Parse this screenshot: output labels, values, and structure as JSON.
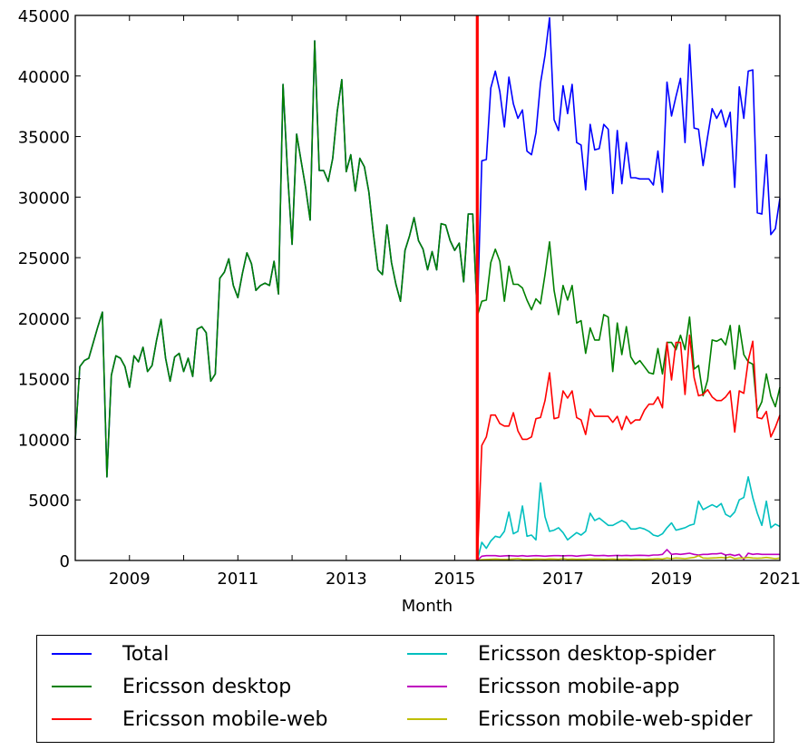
{
  "chart_data": {
    "type": "line",
    "title": "",
    "xlabel": "Month",
    "ylabel": "",
    "x_start": "2008-01",
    "x_frequency": "monthly",
    "xlim": [
      "2008-01",
      "2021-01"
    ],
    "ylim": [
      0,
      45000
    ],
    "x_ticks": [
      "2009",
      "2011",
      "2013",
      "2015",
      "2017",
      "2019",
      "2021"
    ],
    "y_ticks": [
      "0",
      "5000",
      "10000",
      "15000",
      "20000",
      "25000",
      "30000",
      "35000",
      "40000",
      "45000"
    ],
    "grid": false,
    "legend_placement": "below",
    "annotations": [
      {
        "type": "vertical-line",
        "x": "2015-06",
        "color": "#ff0000"
      }
    ],
    "series": [
      {
        "name": "Total",
        "color": "#0000ff",
        "start": "2008-01",
        "values": [
          10000,
          16000,
          16500,
          16700,
          18000,
          19300,
          20500,
          6900,
          15300,
          16900,
          16700,
          16000,
          14300,
          16900,
          16400,
          17600,
          15600,
          16100,
          18200,
          19900,
          16700,
          14800,
          16800,
          17100,
          15600,
          16700,
          15200,
          19100,
          19300,
          18800,
          14800,
          15400,
          23300,
          23800,
          24900,
          22700,
          21700,
          23700,
          25400,
          24500,
          22300,
          22700,
          22900,
          22700,
          24700,
          22000,
          39300,
          32000,
          26100,
          35200,
          33000,
          30800,
          28100,
          42900,
          32200,
          32200,
          31300,
          33200,
          37100,
          39700,
          32100,
          33500,
          30500,
          33200,
          32500,
          30400,
          27000,
          24000,
          23600,
          27700,
          24600,
          22800,
          21400,
          25600,
          26800,
          28300,
          26400,
          25700,
          24000,
          25500,
          24000,
          27800,
          27700,
          26400,
          25600,
          26200,
          23000,
          28600,
          28600,
          20200,
          33000,
          33100,
          39000,
          40400,
          38700,
          35800,
          39900,
          37700,
          36500,
          37200,
          33800,
          33500,
          35300,
          39400,
          41700,
          44800,
          36400,
          35500,
          39200,
          36900,
          39300,
          34500,
          34300,
          30600,
          36000,
          33900,
          34000,
          36000,
          35600,
          30300,
          35500,
          31100,
          34500,
          31600,
          31600,
          31500,
          31500,
          31500,
          31000,
          33800,
          30400,
          39500,
          36700,
          38300,
          39800,
          34500,
          42600,
          35700,
          35600,
          32600,
          35000,
          37300,
          36500,
          37200,
          35800,
          37000,
          30800,
          39100,
          36500,
          40400,
          40500,
          28700,
          28600,
          33500,
          26900,
          27400,
          29900
        ]
      },
      {
        "name": "Ericsson desktop",
        "color": "#008000",
        "start": "2008-01",
        "values": [
          10000,
          16000,
          16500,
          16700,
          18000,
          19300,
          20500,
          6900,
          15300,
          16900,
          16700,
          16000,
          14300,
          16900,
          16400,
          17600,
          15600,
          16100,
          18200,
          19900,
          16700,
          14800,
          16800,
          17100,
          15600,
          16700,
          15200,
          19100,
          19300,
          18800,
          14800,
          15400,
          23300,
          23800,
          24900,
          22700,
          21700,
          23700,
          25400,
          24500,
          22300,
          22700,
          22900,
          22700,
          24700,
          22000,
          39300,
          32000,
          26100,
          35200,
          33000,
          30800,
          28100,
          42900,
          32200,
          32200,
          31300,
          33200,
          37100,
          39700,
          32100,
          33500,
          30500,
          33200,
          32500,
          30400,
          27000,
          24000,
          23600,
          27700,
          24600,
          22800,
          21400,
          25600,
          26800,
          28300,
          26400,
          25700,
          24000,
          25500,
          24000,
          27800,
          27700,
          26400,
          25600,
          26200,
          23000,
          28600,
          28600,
          20200,
          21400,
          21500,
          24600,
          25700,
          24700,
          21400,
          24300,
          22800,
          22800,
          22500,
          21500,
          20700,
          21600,
          21200,
          23600,
          26300,
          22300,
          20300,
          22700,
          21500,
          22700,
          19600,
          19800,
          17100,
          19200,
          18200,
          18200,
          20300,
          20100,
          15600,
          19600,
          17000,
          19300,
          16800,
          16200,
          16500,
          16000,
          15500,
          15400,
          17500,
          15400,
          18000,
          18000,
          17400,
          18600,
          17400,
          20100,
          15800,
          16100,
          13600,
          14900,
          18200,
          18100,
          18300,
          17800,
          19400,
          15800,
          19400,
          17000,
          16400,
          16200,
          12300,
          13100,
          15400,
          13600,
          12700,
          14300
        ]
      },
      {
        "name": "Ericsson mobile-web",
        "color": "#ff0000",
        "start": "2015-06",
        "values": [
          0,
          9500,
          10200,
          12000,
          12000,
          11300,
          11100,
          11100,
          12200,
          10700,
          10000,
          10000,
          10200,
          11700,
          11800,
          13200,
          15500,
          11700,
          11800,
          14000,
          13400,
          14000,
          11800,
          11600,
          10400,
          12500,
          11900,
          11900,
          11900,
          11900,
          11400,
          11900,
          10800,
          11900,
          11300,
          11600,
          11600,
          12400,
          12900,
          12900,
          13500,
          12600,
          18000,
          14900,
          18000,
          18000,
          13700,
          18600,
          15100,
          13600,
          13700,
          14100,
          13500,
          13200,
          13200,
          13500,
          14000,
          10600,
          14000,
          13800,
          16500,
          18100,
          11800,
          11700,
          12300,
          10200,
          11000,
          12000
        ]
      },
      {
        "name": "Ericsson desktop-spider",
        "color": "#00bfbf",
        "start": "2015-06",
        "values": [
          0,
          1500,
          1000,
          1600,
          2000,
          1900,
          2400,
          4000,
          2200,
          2400,
          4500,
          2000,
          2100,
          1700,
          6400,
          3600,
          2400,
          2500,
          2700,
          2300,
          1700,
          2000,
          2300,
          2100,
          2400,
          3900,
          3300,
          3500,
          3200,
          2900,
          2900,
          3100,
          3300,
          3100,
          2600,
          2600,
          2700,
          2600,
          2400,
          2100,
          2000,
          2200,
          2700,
          3100,
          2500,
          2600,
          2700,
          2900,
          3000,
          4900,
          4200,
          4400,
          4600,
          4400,
          4700,
          3800,
          3600,
          4000,
          5000,
          5200,
          6900,
          5200,
          3900,
          2900,
          4900,
          2700,
          3000,
          2800
        ]
      },
      {
        "name": "Ericsson mobile-app",
        "color": "#bf00bf",
        "start": "2015-06",
        "values": [
          0,
          350,
          400,
          400,
          400,
          350,
          380,
          400,
          380,
          360,
          400,
          350,
          380,
          400,
          380,
          350,
          380,
          400,
          400,
          380,
          400,
          400,
          350,
          400,
          420,
          450,
          400,
          400,
          420,
          380,
          400,
          420,
          400,
          420,
          400,
          420,
          430,
          420,
          400,
          450,
          450,
          500,
          900,
          500,
          550,
          500,
          550,
          600,
          500,
          450,
          500,
          500,
          550,
          550,
          600,
          450,
          500,
          400,
          500,
          100,
          600,
          500,
          550,
          500,
          500,
          500,
          500,
          500
        ]
      },
      {
        "name": "Ericsson mobile-web-spider",
        "color": "#bfbf00",
        "start": "2015-06",
        "values": [
          0,
          60,
          80,
          100,
          120,
          100,
          90,
          100,
          120,
          150,
          100,
          90,
          100,
          120,
          110,
          100,
          130,
          120,
          100,
          150,
          100,
          120,
          100,
          110,
          100,
          120,
          130,
          120,
          100,
          110,
          120,
          100,
          110,
          120,
          100,
          120,
          110,
          100,
          120,
          130,
          150,
          120,
          200,
          150,
          200,
          180,
          150,
          200,
          250,
          400,
          200,
          180,
          200,
          220,
          250,
          200,
          300,
          150,
          200,
          200,
          250,
          200,
          180,
          200,
          250,
          200,
          150,
          200
        ]
      }
    ]
  }
}
